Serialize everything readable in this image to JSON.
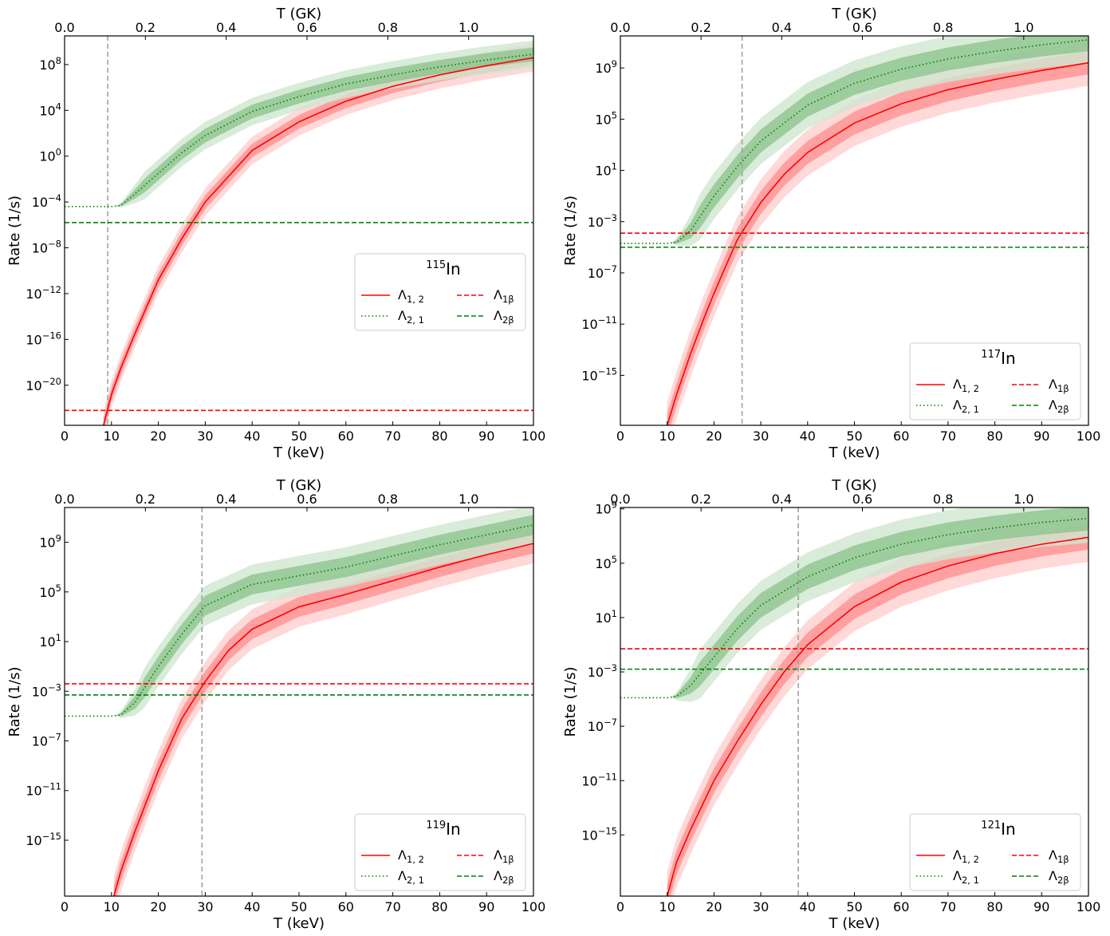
{
  "colors": {
    "rate12": "#ff0000",
    "rate21": "#008000",
    "band_red_outer": "#ffc8c8",
    "band_red_inner": "#ff7c7c",
    "band_green_outer": "#cfe6cf",
    "band_green_inner": "#88c288",
    "threshold": "#a0a0a0"
  },
  "chart_data": [
    {
      "type": "line",
      "nucleus": "In",
      "mass": "115",
      "xlabel": "T (keV)",
      "ylabel": "Rate (1/s)",
      "x2label": "T (GK)",
      "xlim": [
        0,
        100
      ],
      "ylim_exp": [
        -23.5,
        10.5
      ],
      "x_ticks": [
        0,
        10,
        20,
        30,
        40,
        50,
        60,
        70,
        80,
        90,
        100
      ],
      "x2_ticks": [
        "0.0",
        "0.2",
        "0.4",
        "0.6",
        "0.8",
        "1.0"
      ],
      "y_tick_exponents": [
        8,
        4,
        0,
        -4,
        -8,
        -12,
        -16,
        -20
      ],
      "threshold_keV": 9.2,
      "legend": {
        "title_mass": "115",
        "title_symbol": "In",
        "position": "center-right"
      },
      "series": [
        {
          "name": "Λ1,2",
          "legend_main": "Λ",
          "legend_sub": "1, 2",
          "style": "solid",
          "color": "red",
          "x": [
            8.3,
            10,
            12,
            15,
            20,
            25,
            30,
            40,
            50,
            60,
            70,
            80,
            90,
            100
          ],
          "log10_values": [
            -23.5,
            -20.8,
            -18.5,
            -15.5,
            -10.8,
            -7.2,
            -4.0,
            0.5,
            3.0,
            4.8,
            6.1,
            7.1,
            7.9,
            8.6
          ],
          "band_inner": 0.6,
          "band_outer": 1.2
        },
        {
          "name": "Λ2,1",
          "legend_main": "Λ",
          "legend_sub": "2, 1",
          "style": "dotted",
          "color": "green",
          "x": [
            0,
            5,
            10,
            12,
            15,
            20,
            25,
            30,
            40,
            50,
            60,
            70,
            80,
            90,
            100
          ],
          "log10_values": [
            -4.4,
            -4.4,
            -4.4,
            -4.3,
            -3.3,
            -1.5,
            0.3,
            1.8,
            3.9,
            5.2,
            6.3,
            7.1,
            7.8,
            8.4,
            8.9
          ],
          "band_inner": 0.6,
          "band_outer": 1.2
        },
        {
          "name": "Λ1β",
          "legend_main": "Λ",
          "legend_sub": "1β",
          "style": "dashed",
          "color": "red",
          "x": [
            0,
            100
          ],
          "log10_values": [
            -22.2,
            -22.2
          ]
        },
        {
          "name": "Λ2β",
          "legend_main": "Λ",
          "legend_sub": "2β",
          "style": "dashed",
          "color": "green",
          "x": [
            0,
            100
          ],
          "log10_values": [
            -5.8,
            -5.8
          ]
        }
      ]
    },
    {
      "type": "line",
      "nucleus": "In",
      "mass": "117",
      "xlabel": "T (keV)",
      "ylabel": "Rate (1/s)",
      "x2label": "T (GK)",
      "xlim": [
        0,
        100
      ],
      "ylim_exp": [
        -18.9,
        11.5
      ],
      "x_ticks": [
        0,
        10,
        20,
        30,
        40,
        50,
        60,
        70,
        80,
        90,
        100
      ],
      "x2_ticks": [
        "0.0",
        "0.2",
        "0.4",
        "0.6",
        "0.8",
        "1.0"
      ],
      "y_tick_exponents": [
        9,
        5,
        1,
        -3,
        -7,
        -11,
        -15
      ],
      "threshold_keV": 26,
      "legend": {
        "title_mass": "117",
        "title_symbol": "In",
        "position": "lower-right"
      },
      "series": [
        {
          "name": "Λ1,2",
          "legend_main": "Λ",
          "legend_sub": "1, 2",
          "style": "solid",
          "color": "red",
          "x": [
            10,
            12,
            15,
            18,
            20,
            22,
            25,
            30,
            35,
            40,
            50,
            60,
            70,
            80,
            90,
            100
          ],
          "log10_values": [
            -18.9,
            -16.5,
            -13.3,
            -10.4,
            -8.6,
            -6.9,
            -4.4,
            -1.5,
            0.7,
            2.4,
            4.7,
            6.2,
            7.3,
            8.1,
            8.8,
            9.4
          ],
          "band_inner": 0.9,
          "band_outer": 1.8
        },
        {
          "name": "Λ2,1",
          "legend_main": "Λ",
          "legend_sub": "2, 1",
          "style": "dotted",
          "color": "green",
          "x": [
            0,
            5,
            10,
            12,
            15,
            20,
            25,
            30,
            40,
            50,
            60,
            70,
            80,
            90,
            100
          ],
          "log10_values": [
            -4.7,
            -4.7,
            -4.7,
            -4.6,
            -3.7,
            -1.0,
            1.3,
            3.3,
            6.1,
            7.8,
            8.9,
            9.7,
            10.3,
            10.8,
            11.2
          ],
          "band_inner": 0.9,
          "band_outer": 1.8
        },
        {
          "name": "Λ1β",
          "legend_main": "Λ",
          "legend_sub": "1β",
          "style": "dashed",
          "color": "red",
          "x": [
            0,
            100
          ],
          "log10_values": [
            -3.9,
            -3.9
          ]
        },
        {
          "name": "Λ2β",
          "legend_main": "Λ",
          "legend_sub": "2β",
          "style": "dashed",
          "color": "green",
          "x": [
            0,
            100
          ],
          "log10_values": [
            -5.0,
            -5.0
          ]
        }
      ]
    },
    {
      "type": "line",
      "nucleus": "In",
      "mass": "119",
      "xlabel": "T (keV)",
      "ylabel": "Rate (1/s)",
      "x2label": "T (GK)",
      "xlim": [
        0,
        100
      ],
      "ylim_exp": [
        -19.5,
        11.8
      ],
      "x_ticks": [
        0,
        10,
        20,
        30,
        40,
        50,
        60,
        70,
        80,
        90,
        100
      ],
      "x2_ticks": [
        "0.0",
        "0.2",
        "0.4",
        "0.6",
        "0.8",
        "1.0"
      ],
      "y_tick_exponents": [
        9,
        5,
        1,
        -3,
        -7,
        -11,
        -15
      ],
      "threshold_keV": 29.3,
      "legend": {
        "title_mass": "119",
        "title_symbol": "In",
        "position": "lower-right"
      },
      "series": [
        {
          "name": "Λ1,2",
          "legend_main": "Λ",
          "legend_sub": "1, 2",
          "style": "solid",
          "color": "red",
          "x": [
            10.5,
            12,
            15,
            20,
            25,
            30,
            35,
            40,
            50,
            60,
            70,
            80,
            90,
            100
          ],
          "log10_values": [
            -19.5,
            -17.5,
            -14.3,
            -9.4,
            -5.2,
            -2.2,
            0.3,
            2.0,
            3.8,
            4.8,
            5.9,
            7.0,
            8.0,
            8.9
          ],
          "band_inner": 0.8,
          "band_outer": 1.6
        },
        {
          "name": "Λ2,1",
          "legend_main": "Λ",
          "legend_sub": "2, 1",
          "style": "dotted",
          "color": "green",
          "x": [
            0,
            5,
            10,
            12,
            15,
            20,
            25,
            30,
            40,
            50,
            60,
            70,
            80,
            90,
            100
          ],
          "log10_values": [
            -5.0,
            -5.0,
            -5.0,
            -4.9,
            -3.9,
            -1.0,
            1.6,
            3.9,
            5.6,
            6.3,
            7.0,
            7.9,
            8.8,
            9.6,
            10.4
          ],
          "band_inner": 0.8,
          "band_outer": 1.6
        },
        {
          "name": "Λ1β",
          "legend_main": "Λ",
          "legend_sub": "1β",
          "style": "dashed",
          "color": "red",
          "x": [
            0,
            100
          ],
          "log10_values": [
            -2.4,
            -2.4
          ]
        },
        {
          "name": "Λ2β",
          "legend_main": "Λ",
          "legend_sub": "2β",
          "style": "dashed",
          "color": "green",
          "x": [
            0,
            100
          ],
          "log10_values": [
            -3.3,
            -3.3
          ]
        }
      ]
    },
    {
      "type": "line",
      "nucleus": "In",
      "mass": "121",
      "xlabel": "T (keV)",
      "ylabel": "Rate (1/s)",
      "x2label": "T (GK)",
      "xlim": [
        0,
        100
      ],
      "ylim_exp": [
        -19.5,
        9.1
      ],
      "x_ticks": [
        0,
        10,
        20,
        30,
        40,
        50,
        60,
        70,
        80,
        90,
        100
      ],
      "x2_ticks": [
        "0.0",
        "0.2",
        "0.4",
        "0.6",
        "0.8",
        "1.0"
      ],
      "y_tick_exponents": [
        9,
        5,
        1,
        -3,
        -7,
        -11,
        -15
      ],
      "threshold_keV": 38,
      "legend": {
        "title_mass": "121",
        "title_symbol": "In",
        "position": "lower-right"
      },
      "series": [
        {
          "name": "Λ1,2",
          "legend_main": "Λ",
          "legend_sub": "1, 2",
          "style": "solid",
          "color": "red",
          "x": [
            10,
            12,
            15,
            20,
            25,
            30,
            35,
            40,
            50,
            60,
            70,
            80,
            90,
            100
          ],
          "log10_values": [
            -19.5,
            -17.0,
            -14.6,
            -11.0,
            -8.1,
            -5.4,
            -3.0,
            -1.0,
            1.8,
            3.6,
            4.8,
            5.7,
            6.4,
            6.9
          ],
          "band_inner": 0.9,
          "band_outer": 1.8
        },
        {
          "name": "Λ2,1",
          "legend_main": "Λ",
          "legend_sub": "2, 1",
          "style": "dotted",
          "color": "green",
          "x": [
            0,
            5,
            10,
            12,
            15,
            20,
            25,
            30,
            40,
            50,
            60,
            70,
            80,
            90,
            100
          ],
          "log10_values": [
            -4.9,
            -4.9,
            -4.9,
            -4.8,
            -4.0,
            -1.9,
            0.2,
            1.9,
            4.0,
            5.4,
            6.4,
            7.1,
            7.6,
            8.0,
            8.3
          ],
          "band_inner": 0.9,
          "band_outer": 1.8
        },
        {
          "name": "Λ1β",
          "legend_main": "Λ",
          "legend_sub": "1β",
          "style": "dashed",
          "color": "red",
          "x": [
            0,
            100
          ],
          "log10_values": [
            -1.3,
            -1.3
          ]
        },
        {
          "name": "Λ2β",
          "legend_main": "Λ",
          "legend_sub": "2β",
          "style": "dashed",
          "color": "green",
          "x": [
            0,
            100
          ],
          "log10_values": [
            -2.8,
            -2.8
          ]
        }
      ]
    }
  ]
}
